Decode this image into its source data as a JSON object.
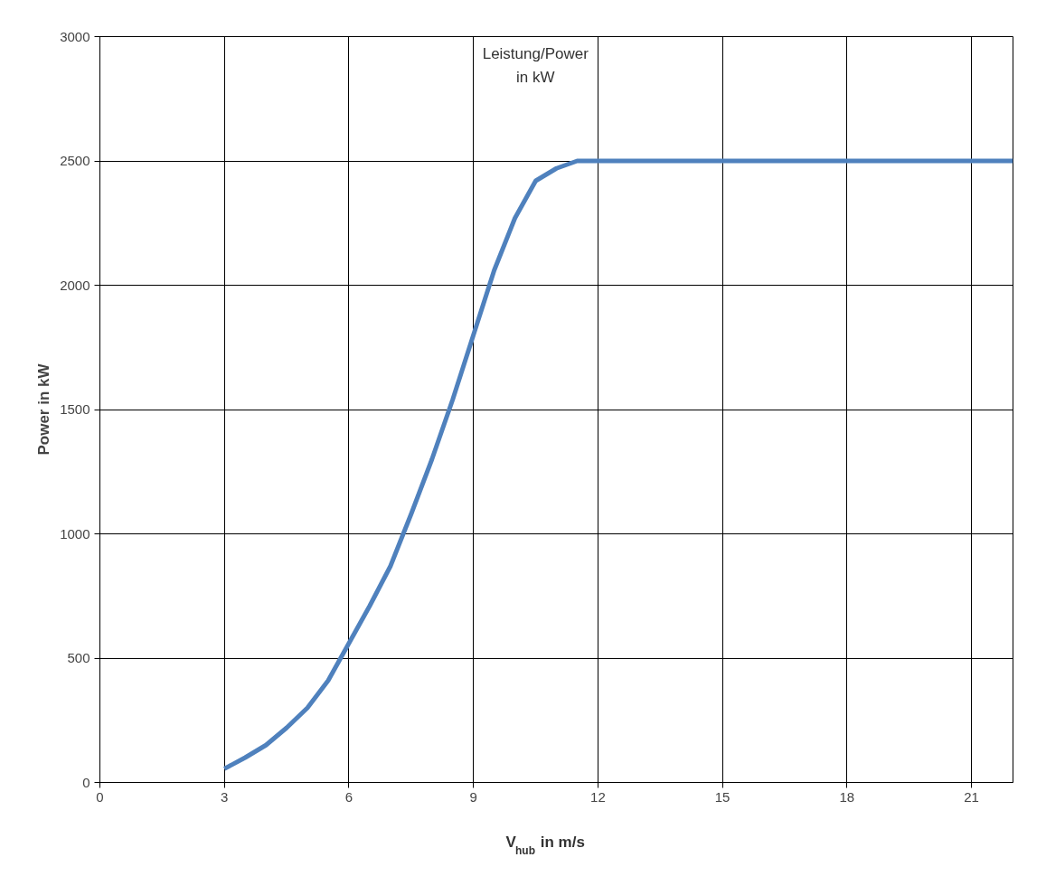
{
  "chart_data": {
    "type": "line",
    "title": "Leistung/Power\nin kW",
    "xlabel": "V$_{hub}$ in m/s",
    "ylabel": "Power in kW",
    "x": [
      3,
      3.5,
      4,
      4.5,
      5,
      5.5,
      6,
      6.5,
      7,
      7.5,
      8,
      8.5,
      9,
      9.5,
      10,
      10.5,
      11,
      11.5,
      12,
      22
    ],
    "series": [
      {
        "color": "#4f81bd",
        "values": [
          55,
          100,
          150,
          220,
          300,
          410,
          560,
          710,
          870,
          1080,
          1300,
          1540,
          1800,
          2060,
          2270,
          2420,
          2470,
          2500,
          2500,
          2500
        ]
      }
    ],
    "xlim": [
      0,
      22
    ],
    "ylim": [
      0,
      3000
    ],
    "xticks": [
      0,
      3,
      6,
      9,
      12,
      15,
      18,
      21
    ],
    "yticks": [
      0,
      500,
      1000,
      1500,
      2000,
      2500,
      3000
    ],
    "grid": true,
    "marker": "none",
    "line_style": "solid"
  }
}
